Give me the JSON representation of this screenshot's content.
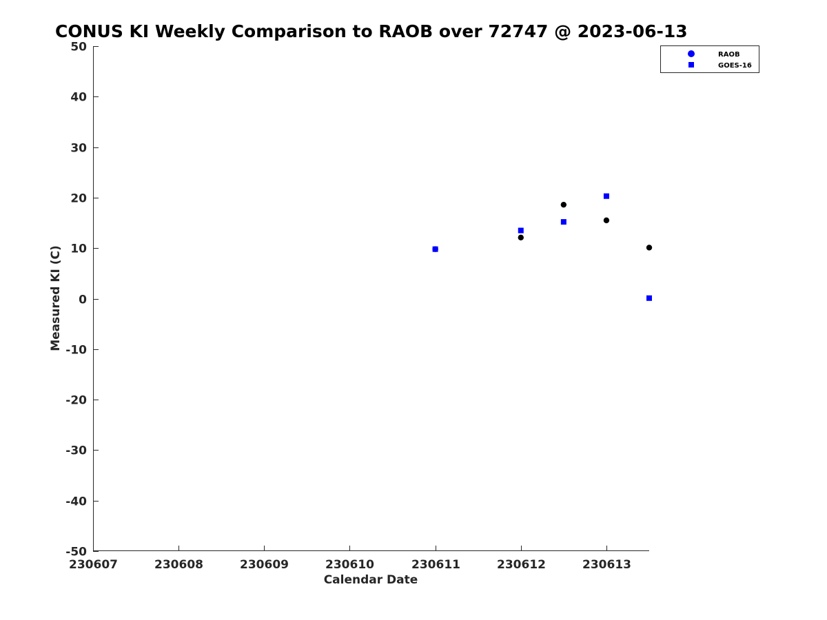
{
  "chart_data": {
    "type": "scatter",
    "title": "CONUS KI Weekly Comparison to RAOB over 72747 @ 2023-06-13",
    "xlabel": "Calendar Date",
    "ylabel": "Measured KI (C)",
    "xlim": [
      "2023-06-07",
      "2023-06-13 12:00"
    ],
    "ylim": [
      -50,
      50
    ],
    "x_ticks": [
      "230607",
      "230608",
      "230609",
      "230610",
      "230611",
      "230612",
      "230613"
    ],
    "y_ticks": [
      "50",
      "40",
      "30",
      "20",
      "10",
      "0",
      "-10",
      "-20",
      "-30",
      "-40",
      "-50"
    ],
    "grid": false,
    "legend_position": "top-right",
    "legend": [
      {
        "label": "RAOB",
        "marker": "circle",
        "color": "#0000ff"
      },
      {
        "label": "GOES-16",
        "marker": "square",
        "color": "#0000ff"
      }
    ],
    "series": [
      {
        "name": "RAOB",
        "marker": "circle",
        "color": "#000000",
        "points": [
          {
            "x": "2023-06-11 00:00",
            "y": 9.8
          },
          {
            "x": "2023-06-12 00:00",
            "y": 12.1
          },
          {
            "x": "2023-06-12 12:00",
            "y": 18.6
          },
          {
            "x": "2023-06-13 00:00",
            "y": 15.5
          },
          {
            "x": "2023-06-13 12:00",
            "y": 10.1
          }
        ]
      },
      {
        "name": "GOES-16",
        "marker": "square",
        "color": "#0000ff",
        "points": [
          {
            "x": "2023-06-11 00:00",
            "y": 9.8
          },
          {
            "x": "2023-06-12 00:00",
            "y": 13.5
          },
          {
            "x": "2023-06-12 12:00",
            "y": 15.2
          },
          {
            "x": "2023-06-13 00:00",
            "y": 20.3
          },
          {
            "x": "2023-06-13 12:00",
            "y": 0.1
          }
        ]
      }
    ]
  }
}
